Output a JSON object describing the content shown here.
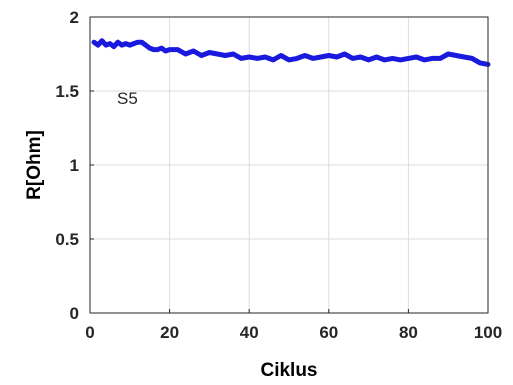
{
  "chart_data": {
    "type": "line",
    "title": "",
    "xlabel": "Ciklus",
    "ylabel": "R[Ohm]",
    "xlim": [
      0,
      100
    ],
    "ylim": [
      0,
      2
    ],
    "xticks": [
      0,
      20,
      40,
      60,
      80,
      100
    ],
    "yticks": [
      0,
      0.5,
      1,
      1.5,
      2
    ],
    "xtick_labels": [
      "0",
      "20",
      "40",
      "60",
      "80",
      "100"
    ],
    "ytick_labels": [
      "0",
      "0.5",
      "1",
      "1.5",
      "2"
    ],
    "grid": true,
    "annotation": "S5",
    "series": [
      {
        "color": "#1a1adf",
        "x": [
          1,
          2,
          3,
          4,
          5,
          6,
          7,
          8,
          9,
          10,
          11,
          12,
          13,
          14,
          15,
          16,
          17,
          18,
          19,
          20,
          22,
          24,
          26,
          28,
          30,
          32,
          34,
          36,
          38,
          40,
          42,
          44,
          46,
          48,
          50,
          52,
          54,
          56,
          58,
          60,
          62,
          64,
          66,
          68,
          70,
          72,
          74,
          76,
          78,
          80,
          82,
          84,
          86,
          88,
          90,
          92,
          94,
          96,
          98,
          100
        ],
        "y": [
          1.83,
          1.81,
          1.84,
          1.81,
          1.82,
          1.8,
          1.83,
          1.81,
          1.82,
          1.81,
          1.82,
          1.83,
          1.83,
          1.81,
          1.79,
          1.78,
          1.78,
          1.79,
          1.77,
          1.78,
          1.78,
          1.75,
          1.77,
          1.74,
          1.76,
          1.75,
          1.74,
          1.75,
          1.72,
          1.73,
          1.72,
          1.73,
          1.71,
          1.74,
          1.71,
          1.72,
          1.74,
          1.72,
          1.73,
          1.74,
          1.73,
          1.75,
          1.72,
          1.73,
          1.71,
          1.73,
          1.71,
          1.72,
          1.71,
          1.72,
          1.73,
          1.71,
          1.72,
          1.72,
          1.75,
          1.74,
          1.73,
          1.72,
          1.69,
          1.68
        ]
      }
    ]
  }
}
